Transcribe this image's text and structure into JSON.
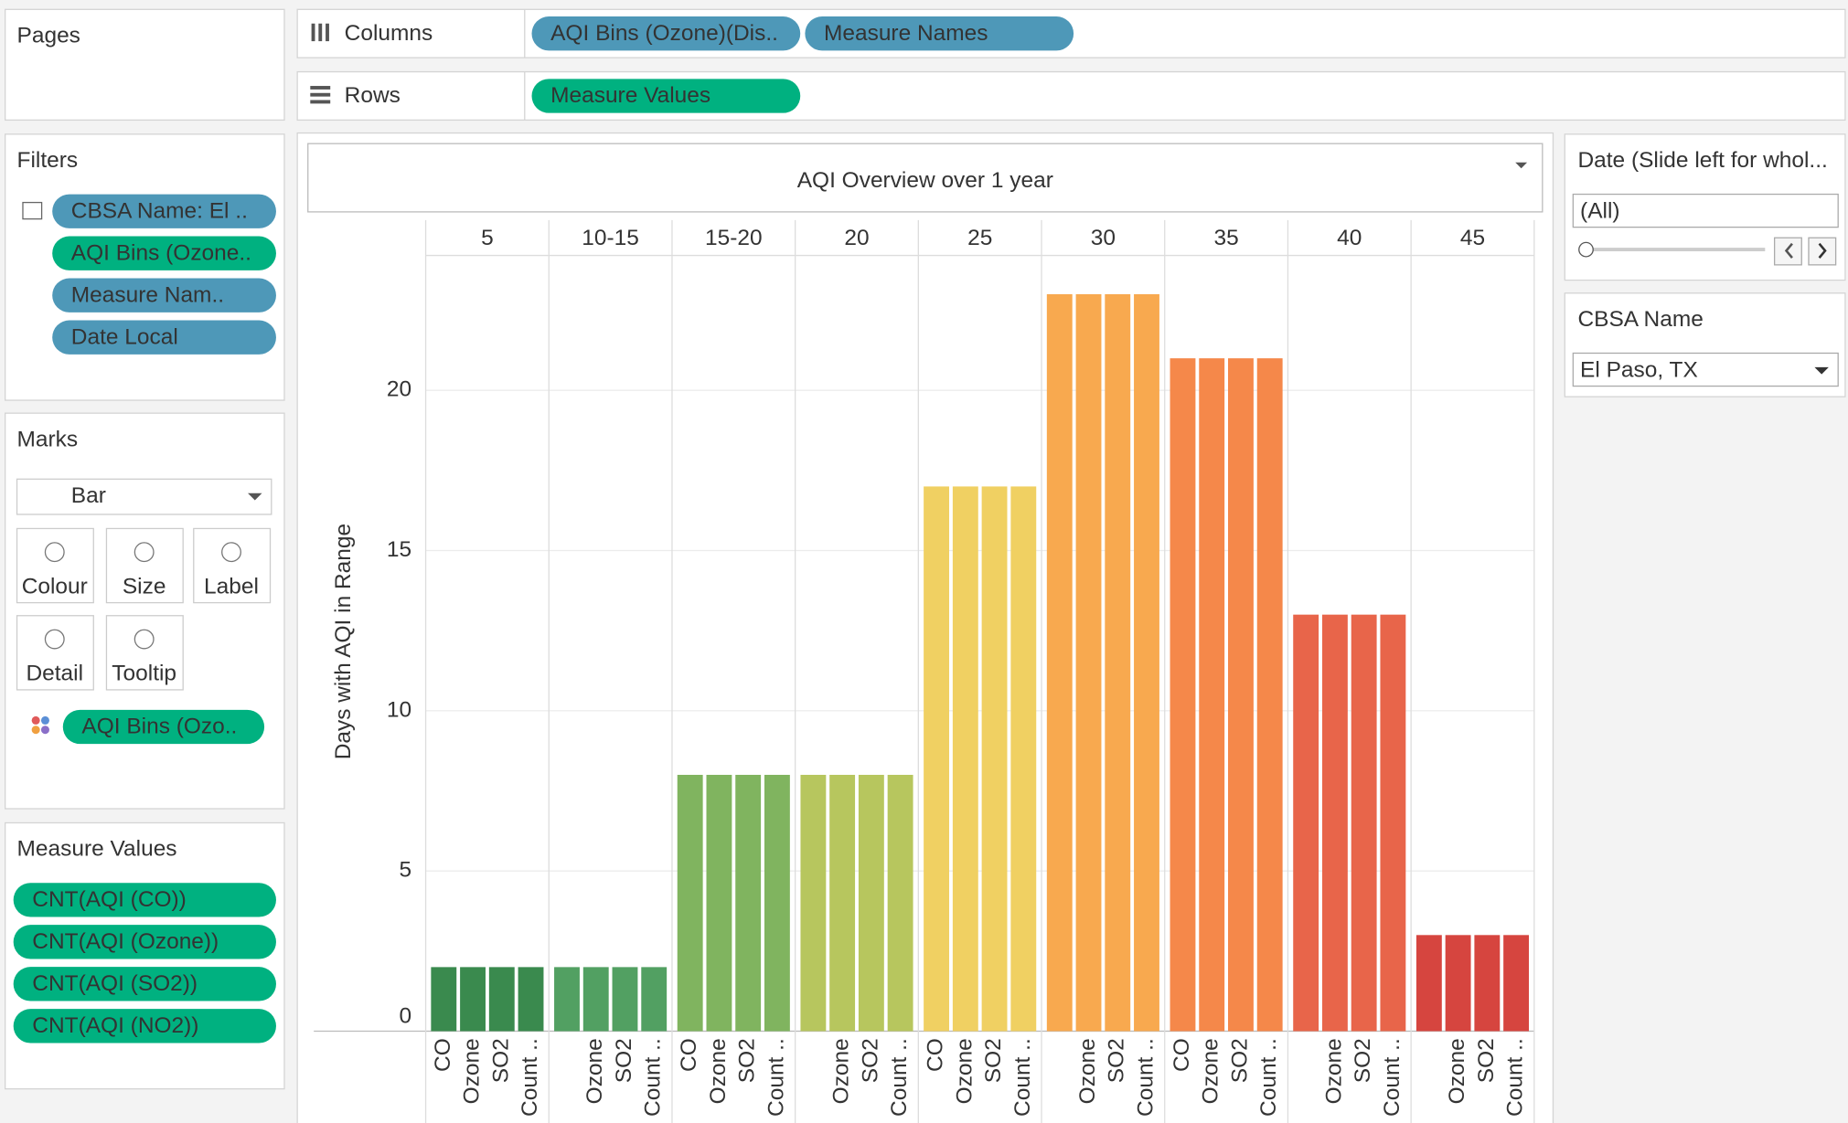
{
  "ui": {
    "pages": "Pages",
    "columns": {
      "label": "Columns",
      "pills": [
        "AQI Bins (Ozone)(Dis..",
        "Measure Names"
      ]
    },
    "rows": {
      "label": "Rows",
      "pills": [
        "Measure Values"
      ]
    },
    "filters": {
      "title": "Filters",
      "pills": [
        "CBSA Name: El ..",
        "AQI Bins (Ozone..",
        "Measure Nam..",
        "Date Local"
      ]
    },
    "marks": {
      "title": "Marks",
      "type": "Bar",
      "buttons": [
        "Colour",
        "Size",
        "Label",
        "Detail",
        "Tooltip"
      ],
      "pill": "AQI Bins (Ozo.."
    },
    "measure_values": {
      "title": "Measure Values",
      "pills": [
        "CNT(AQI (CO))",
        "CNT(AQI (Ozone))",
        "CNT(AQI (SO2))",
        "CNT(AQI (NO2))"
      ]
    },
    "date_filter": {
      "title": "Date (Slide left for whol...",
      "value": "(All)"
    },
    "cbsa_filter": {
      "title": "CBSA Name",
      "value": "El Paso, TX"
    }
  },
  "chart_data": {
    "type": "grouped-bar",
    "title": "AQI Overview over 1 year",
    "y_label": "Days with AQI in Range",
    "ylim": [
      0,
      24.1
    ],
    "yticks": [
      0,
      5,
      10,
      15,
      20
    ],
    "grid": true,
    "groups": [
      {
        "name": "5",
        "color": "#3a8a4e",
        "bar_labels": [
          "CO",
          "Ozone",
          "SO2",
          "Count .."
        ],
        "values": [
          2,
          2,
          2,
          2
        ]
      },
      {
        "name": "10-15",
        "color": "#52a062",
        "bar_labels": [
          null,
          "Ozone",
          "SO2",
          "Count .."
        ],
        "values": [
          2,
          2,
          2,
          2
        ]
      },
      {
        "name": "15-20",
        "color": "#80b45f",
        "bar_labels": [
          "CO",
          "Ozone",
          "SO2",
          "Count .."
        ],
        "values": [
          8,
          8,
          8,
          8
        ]
      },
      {
        "name": "20",
        "color": "#b7c65e",
        "bar_labels": [
          null,
          "Ozone",
          "SO2",
          "Count .."
        ],
        "values": [
          8,
          8,
          8,
          8
        ]
      },
      {
        "name": "25",
        "color": "#f0d062",
        "bar_labels": [
          "CO",
          "Ozone",
          "SO2",
          "Count .."
        ],
        "values": [
          17,
          17,
          17,
          17
        ]
      },
      {
        "name": "30",
        "color": "#f8a94f",
        "bar_labels": [
          null,
          "Ozone",
          "SO2",
          "Count .."
        ],
        "values": [
          23,
          23,
          23,
          23
        ]
      },
      {
        "name": "35",
        "color": "#f5884a",
        "bar_labels": [
          "CO",
          "Ozone",
          "SO2",
          "Count .."
        ],
        "values": [
          21,
          21,
          21,
          21
        ]
      },
      {
        "name": "40",
        "color": "#e8654a",
        "bar_labels": [
          null,
          "Ozone",
          "SO2",
          "Count .."
        ],
        "values": [
          13,
          13,
          13,
          13
        ]
      },
      {
        "name": "45",
        "color": "#d6453f",
        "bar_labels": [
          null,
          "Ozone",
          "SO2",
          "Count .."
        ],
        "values": [
          3,
          3,
          3,
          3
        ]
      }
    ]
  }
}
